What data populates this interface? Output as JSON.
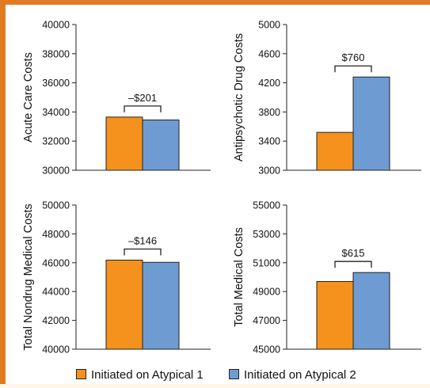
{
  "colors": {
    "accent_border": "#e07b22",
    "series1": "#f5921e",
    "series2": "#6f9bd3",
    "axis": "#222222"
  },
  "legend": {
    "items": [
      {
        "label": "Initiated on Atypical 1",
        "color": "#f5921e"
      },
      {
        "label": "Initiated on Atypical 2",
        "color": "#6f9bd3"
      }
    ]
  },
  "chart_data": [
    {
      "type": "bar",
      "title": "",
      "xlabel": "",
      "ylabel": "Acute Care Costs",
      "categories": [
        "Initiated on Atypical 1",
        "Initiated on Atypical 2"
      ],
      "values": [
        33650,
        33450
      ],
      "ylim": [
        30000,
        40000
      ],
      "yticks": [
        "30000",
        "32000",
        "34000",
        "36000",
        "38000",
        "40000"
      ],
      "yticks_values": [
        30000,
        32000,
        34000,
        36000,
        38000,
        40000
      ],
      "annotation": "–$201",
      "grid": false
    },
    {
      "type": "bar",
      "title": "",
      "xlabel": "",
      "ylabel": "Antipsychotic Drug Costs",
      "categories": [
        "Initiated on Atypical 1",
        "Initiated on Atypical 2"
      ],
      "values": [
        3520,
        4280
      ],
      "ylim": [
        3000,
        5000
      ],
      "yticks": [
        "3000",
        "3400",
        "3800",
        "4200",
        "4600",
        "5000"
      ],
      "yticks_values": [
        3000,
        3400,
        3800,
        4200,
        4600,
        5000
      ],
      "annotation": "$760",
      "grid": false
    },
    {
      "type": "bar",
      "title": "",
      "xlabel": "",
      "ylabel": "Total Nondrug Medical Costs",
      "categories": [
        "Initiated on Atypical 1",
        "Initiated on Atypical 2"
      ],
      "values": [
        46180,
        46030
      ],
      "ylim": [
        40000,
        50000
      ],
      "yticks": [
        "40000",
        "42000",
        "44000",
        "46000",
        "48000",
        "50000"
      ],
      "yticks_values": [
        40000,
        42000,
        44000,
        46000,
        48000,
        50000
      ],
      "annotation": "–$146",
      "grid": false
    },
    {
      "type": "bar",
      "title": "",
      "xlabel": "",
      "ylabel": "Total Medical Costs",
      "categories": [
        "Initiated on Atypical 1",
        "Initiated on Atypical 2"
      ],
      "values": [
        49700,
        50320
      ],
      "ylim": [
        45000,
        55000
      ],
      "yticks": [
        "45000",
        "47000",
        "49000",
        "51000",
        "53000",
        "55000"
      ],
      "yticks_values": [
        45000,
        47000,
        49000,
        51000,
        53000,
        55000
      ],
      "annotation": "$615",
      "grid": false
    }
  ]
}
